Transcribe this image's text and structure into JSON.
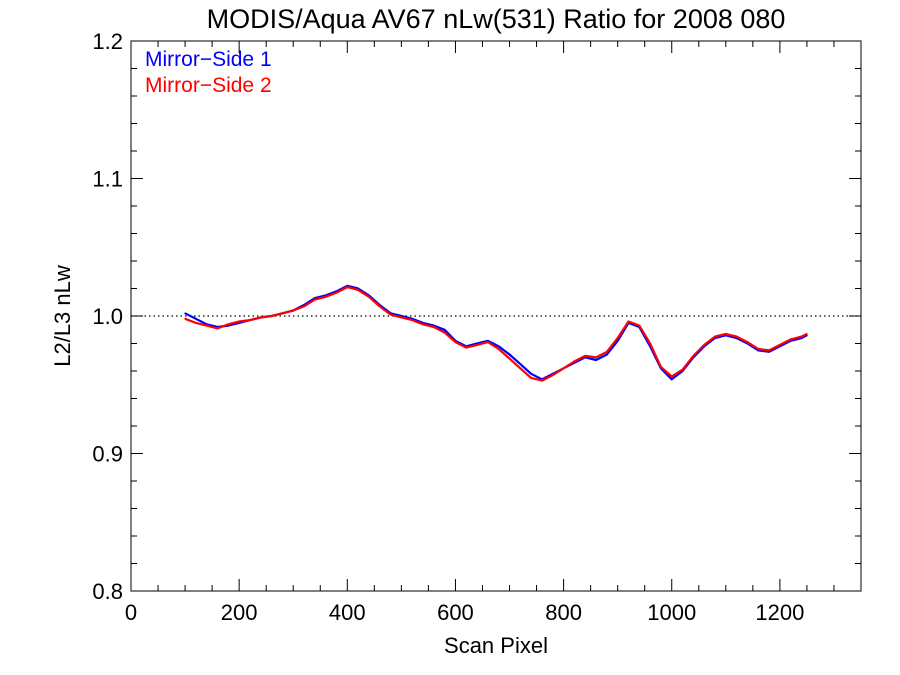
{
  "chart_data": {
    "type": "line",
    "title": "MODIS/Aqua AV67 nLw(531) Ratio for 2008 080",
    "xlabel": "Scan Pixel",
    "ylabel": "L2/L3 nLw",
    "xlim": [
      0,
      1350
    ],
    "ylim": [
      0.8,
      1.2
    ],
    "x_ticks": [
      0,
      200,
      400,
      600,
      800,
      1000,
      1200
    ],
    "x_tick_labels": [
      "0",
      "200",
      "400",
      "600",
      "800",
      "1000",
      "1200"
    ],
    "y_ticks": [
      0.8,
      0.9,
      1.0,
      1.1,
      1.2
    ],
    "y_tick_labels": [
      "0.8",
      "0.9",
      "1.0",
      "1.1",
      "1.2"
    ],
    "reference_line": {
      "y": 1.0,
      "style": "dotted",
      "color": "#000000"
    },
    "legend": {
      "placement": "top-left",
      "entries": [
        {
          "label": "Mirror−Side 1",
          "color": "#0000ff"
        },
        {
          "label": "Mirror−Side 2",
          "color": "#ff0000"
        }
      ]
    },
    "grid": false,
    "x": [
      100,
      120,
      140,
      160,
      180,
      200,
      220,
      240,
      260,
      280,
      300,
      320,
      340,
      360,
      380,
      400,
      420,
      440,
      460,
      480,
      500,
      520,
      540,
      560,
      580,
      600,
      620,
      640,
      660,
      680,
      700,
      720,
      740,
      760,
      780,
      800,
      820,
      840,
      860,
      880,
      900,
      920,
      940,
      960,
      980,
      1000,
      1020,
      1040,
      1060,
      1080,
      1100,
      1120,
      1140,
      1160,
      1180,
      1200,
      1220,
      1240,
      1250
    ],
    "series": [
      {
        "name": "Mirror−Side 1",
        "color": "#0000ff",
        "values": [
          1.002,
          0.998,
          0.994,
          0.992,
          0.993,
          0.995,
          0.997,
          0.999,
          1.0,
          1.002,
          1.004,
          1.008,
          1.013,
          1.015,
          1.018,
          1.022,
          1.02,
          1.015,
          1.008,
          1.002,
          1.0,
          0.998,
          0.995,
          0.993,
          0.99,
          0.982,
          0.978,
          0.98,
          0.982,
          0.978,
          0.972,
          0.965,
          0.958,
          0.954,
          0.958,
          0.962,
          0.966,
          0.97,
          0.968,
          0.972,
          0.982,
          0.995,
          0.992,
          0.978,
          0.962,
          0.954,
          0.96,
          0.97,
          0.978,
          0.984,
          0.986,
          0.984,
          0.98,
          0.975,
          0.974,
          0.978,
          0.982,
          0.984,
          0.986
        ]
      },
      {
        "name": "Mirror−Side 2",
        "color": "#ff0000",
        "values": [
          0.998,
          0.995,
          0.993,
          0.991,
          0.994,
          0.996,
          0.997,
          0.999,
          1.0,
          1.002,
          1.004,
          1.007,
          1.012,
          1.014,
          1.017,
          1.021,
          1.019,
          1.014,
          1.007,
          1.001,
          0.999,
          0.997,
          0.994,
          0.992,
          0.988,
          0.981,
          0.977,
          0.979,
          0.981,
          0.976,
          0.969,
          0.962,
          0.955,
          0.953,
          0.957,
          0.962,
          0.967,
          0.971,
          0.97,
          0.974,
          0.984,
          0.996,
          0.993,
          0.98,
          0.963,
          0.956,
          0.961,
          0.971,
          0.979,
          0.985,
          0.987,
          0.985,
          0.981,
          0.976,
          0.975,
          0.979,
          0.983,
          0.985,
          0.987
        ]
      }
    ]
  }
}
